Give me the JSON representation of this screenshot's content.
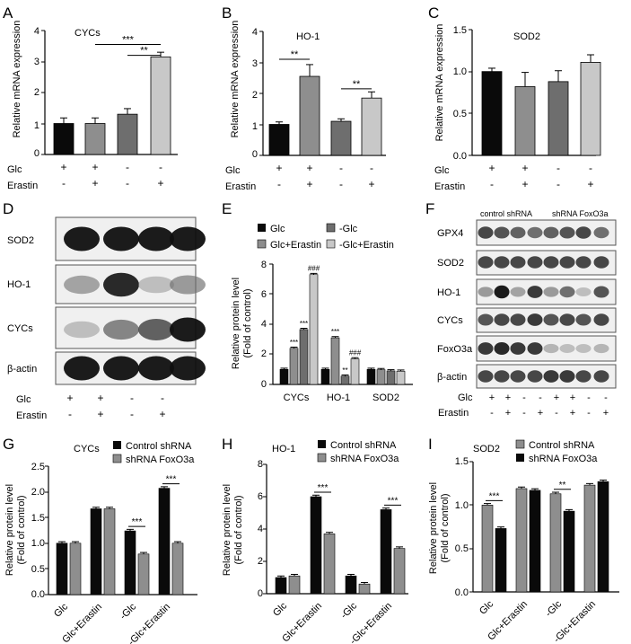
{
  "panels": {
    "A": "A",
    "B": "B",
    "C": "C",
    "D": "D",
    "E": "E",
    "F": "F",
    "G": "G",
    "H": "H",
    "I": "I"
  },
  "colors": {
    "black": "#0a0a0a",
    "darkgray": "#6e6e6e",
    "midgray": "#8e8e8e",
    "lightgray": "#c8c8c8",
    "blot_bg": "#f0f0f0"
  },
  "chart_data": [
    {
      "id": "A",
      "type": "bar",
      "title": "CYCs",
      "ylabel": "Relative mRNA expression",
      "ylim": [
        0,
        4
      ],
      "yticks": [
        "0",
        "1",
        "2",
        "3",
        "4"
      ],
      "values": [
        1.0,
        1.0,
        1.3,
        3.15
      ],
      "errors": [
        0.18,
        0.18,
        0.18,
        0.15
      ],
      "colors": [
        "black",
        "midgray",
        "darkgray",
        "lightgray"
      ],
      "conditions": {
        "Glc": [
          "+",
          "+",
          "-",
          "-"
        ],
        "Erastin": [
          "-",
          "+",
          "-",
          "+"
        ]
      },
      "sig": [
        {
          "from": 1,
          "to": 3,
          "y": 3.55,
          "label": "***"
        },
        {
          "from": 2,
          "to": 3,
          "y": 3.2,
          "label": "**"
        }
      ]
    },
    {
      "id": "B",
      "type": "bar",
      "title": "HO-1",
      "ylabel": "Relative mRNA expression",
      "ylim": [
        0,
        4
      ],
      "yticks": [
        "0",
        "1",
        "2",
        "3",
        "4"
      ],
      "values": [
        1.0,
        2.55,
        1.1,
        1.85
      ],
      "errors": [
        0.08,
        0.38,
        0.08,
        0.2
      ],
      "colors": [
        "black",
        "midgray",
        "darkgray",
        "lightgray"
      ],
      "conditions": {
        "Glc": [
          "+",
          "+",
          "-",
          "-"
        ],
        "Erastin": [
          "-",
          "+",
          "-",
          "+"
        ]
      },
      "sig": [
        {
          "from": 0,
          "to": 1,
          "y": 3.1,
          "label": "**"
        },
        {
          "from": 2,
          "to": 3,
          "y": 2.15,
          "label": "**"
        }
      ]
    },
    {
      "id": "C",
      "type": "bar",
      "title": "SOD2",
      "ylabel": "Relative mRNA expression",
      "ylim": [
        0,
        1.5
      ],
      "yticks": [
        "0.0",
        "0.5",
        "1.0",
        "1.5"
      ],
      "values": [
        1.0,
        0.82,
        0.88,
        1.11
      ],
      "errors": [
        0.04,
        0.17,
        0.13,
        0.09
      ],
      "colors": [
        "black",
        "midgray",
        "darkgray",
        "lightgray"
      ],
      "conditions": {
        "Glc": [
          "+",
          "+",
          "-",
          "-"
        ],
        "Erastin": [
          "-",
          "+",
          "-",
          "+"
        ]
      },
      "sig": []
    },
    {
      "id": "E",
      "type": "bar",
      "ylabel": [
        "Relative protein level",
        "(Fold of control)"
      ],
      "ylim": [
        0,
        8
      ],
      "yticks": [
        "0",
        "2",
        "4",
        "6",
        "8"
      ],
      "categories": [
        "CYCs",
        "HO-1",
        "SOD2"
      ],
      "series": [
        {
          "name": "Glc",
          "color": "black",
          "values": [
            1.0,
            1.0,
            1.0
          ],
          "labels": [
            "",
            "",
            ""
          ]
        },
        {
          "name": "Glc+Erastin",
          "color": "midgray",
          "values": [
            2.4,
            3.1,
            0.98
          ],
          "labels": [
            "***",
            "***",
            ""
          ]
        },
        {
          "name": "-Glc",
          "color": "darkgray",
          "values": [
            3.65,
            0.55,
            0.9
          ],
          "labels": [
            "***",
            "**",
            ""
          ]
        },
        {
          "name": "-Glc+Erastin",
          "color": "lightgray",
          "values": [
            7.3,
            1.7,
            0.88
          ],
          "labels": [
            "###",
            "###",
            ""
          ]
        }
      ]
    },
    {
      "id": "G",
      "type": "bar",
      "title": "CYCs",
      "ylabel": [
        "Relative protein level",
        "(Fold of control)"
      ],
      "ylim": [
        0,
        2.5
      ],
      "yticks": [
        "0.0",
        "0.5",
        "1.0",
        "1.5",
        "2.0",
        "2.5"
      ],
      "categories": [
        "Glc",
        "Glc+Erastin",
        "-Glc",
        "-Glc+Erastin"
      ],
      "series": [
        {
          "name": "Control shRNA",
          "color": "black",
          "values": [
            1.0,
            1.67,
            1.24,
            2.07
          ]
        },
        {
          "name": "shRNA FoxO3a",
          "color": "midgray",
          "values": [
            1.0,
            1.67,
            0.79,
            1.0
          ]
        }
      ],
      "sig": [
        {
          "cat": 2,
          "label": "***"
        },
        {
          "cat": 3,
          "label": "***"
        }
      ]
    },
    {
      "id": "H",
      "type": "bar",
      "title": "HO-1",
      "ylabel": [
        "Relative protein level",
        "(Fold of control)"
      ],
      "ylim": [
        0,
        8
      ],
      "yticks": [
        "0",
        "2",
        "4",
        "6",
        "8"
      ],
      "categories": [
        "Glc",
        "Glc+Erastin",
        "-Glc",
        "-Glc+Erastin"
      ],
      "series": [
        {
          "name": "Control shRNA",
          "color": "black",
          "values": [
            1.0,
            6.0,
            1.1,
            5.2
          ]
        },
        {
          "name": "shRNA FoxO3a",
          "color": "midgray",
          "values": [
            1.1,
            3.7,
            0.6,
            2.8
          ]
        }
      ],
      "sig": [
        {
          "cat": 1,
          "label": "***"
        },
        {
          "cat": 3,
          "label": "***"
        }
      ]
    },
    {
      "id": "I",
      "type": "bar",
      "title": "SOD2",
      "ylabel": [
        "Relative protein level",
        "(Fold of control)"
      ],
      "ylim": [
        0,
        1.5
      ],
      "yticks": [
        "0.0",
        "0.5",
        "1.0",
        "1.5"
      ],
      "categories": [
        "Glc",
        "Glc+Erastin",
        "-Glc",
        "-Glc+Erastin"
      ],
      "series": [
        {
          "name": "Control shRNA",
          "color": "midgray",
          "values": [
            1.0,
            1.19,
            1.13,
            1.23
          ]
        },
        {
          "name": "shRNA FoxO3a",
          "color": "black",
          "values": [
            0.73,
            1.17,
            0.93,
            1.27
          ]
        }
      ],
      "sig": [
        {
          "cat": 0,
          "label": "***"
        },
        {
          "cat": 2,
          "label": "**"
        }
      ]
    }
  ],
  "blots": {
    "D": {
      "rows": [
        "SOD2",
        "HO-1",
        "CYCs",
        "β-actin"
      ],
      "intensity": [
        [
          1,
          1,
          1,
          1
        ],
        [
          0.45,
          0.95,
          0.3,
          0.5
        ],
        [
          0.3,
          0.6,
          0.75,
          1
        ],
        [
          1,
          1,
          1,
          1
        ]
      ],
      "conditions": {
        "Glc": [
          "+",
          "+",
          "-",
          "-"
        ],
        "Erastin": [
          "-",
          "+",
          "-",
          "+"
        ]
      }
    },
    "F": {
      "header": [
        "control shRNA",
        "shRNA FoxO3a"
      ],
      "rows": [
        "GPX4",
        "SOD2",
        "HO-1",
        "CYCs",
        "FoxO3a",
        "β-actin"
      ],
      "intensity": [
        [
          0.85,
          0.8,
          0.75,
          0.7,
          0.75,
          0.8,
          0.85,
          0.7
        ],
        [
          0.85,
          0.85,
          0.85,
          0.85,
          0.85,
          0.85,
          0.85,
          0.85
        ],
        [
          0.5,
          1,
          0.45,
          0.9,
          0.5,
          0.7,
          0.3,
          0.8
        ],
        [
          0.8,
          0.85,
          0.85,
          0.9,
          0.8,
          0.85,
          0.8,
          0.85
        ],
        [
          0.9,
          0.95,
          0.9,
          0.9,
          0.35,
          0.3,
          0.3,
          0.35
        ],
        [
          0.85,
          0.85,
          0.85,
          0.85,
          0.9,
          0.9,
          0.85,
          0.85
        ]
      ],
      "conditions": {
        "Glc": [
          "+",
          "+",
          "-",
          "-",
          "+",
          "+",
          "-",
          "-"
        ],
        "Erastin": [
          "-",
          "+",
          "-",
          "+",
          "-",
          "+",
          "-",
          "+"
        ]
      }
    }
  }
}
